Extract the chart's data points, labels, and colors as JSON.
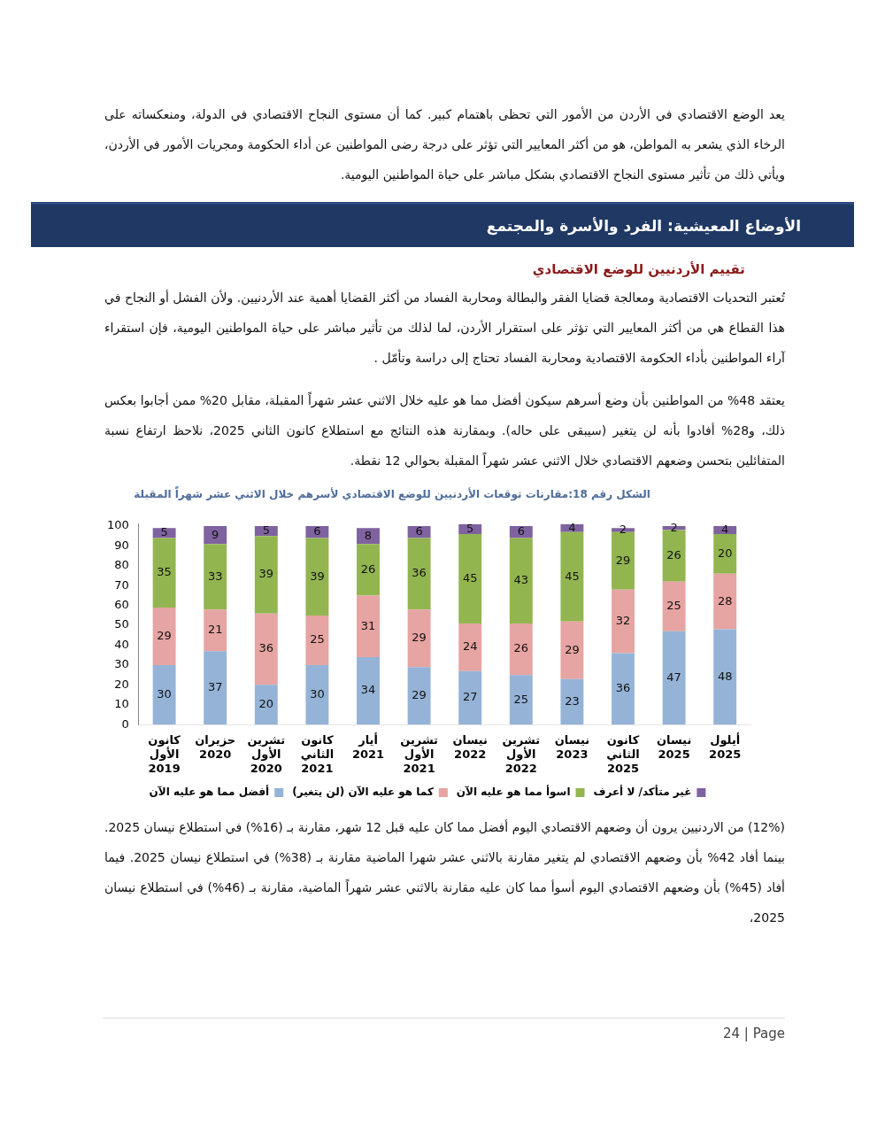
{
  "chart_data": {
    "type": "bar",
    "title": "الشكل رقم  18:مقارنات توقعات الأردنيين للوضع الاقتصادي لأسرهم خلال الاثني عشر شهراً المقبلة",
    "categories": [
      "كانون الأول 2019",
      "حزيران 2020",
      "تشرين الأول 2020",
      "كانون الثاني 2021",
      "أيار 2021",
      "تشرين الأول 2021",
      "نيسان 2022",
      "تشرين الأول 2022",
      "نيسان 2023",
      "كانون الثاني 2025",
      "نيسان 2025",
      "أيلول 2025"
    ],
    "series": [
      {
        "name": "أفضل مما هو عليه الآن",
        "color": "#95b3d7",
        "values": [
          30,
          37,
          20,
          30,
          34,
          29,
          27,
          25,
          23,
          36,
          47,
          48
        ]
      },
      {
        "name": "كما هو عليه الآن (لن يتغير)",
        "color": "#e6a4a2",
        "values": [
          29,
          21,
          36,
          25,
          31,
          29,
          24,
          26,
          29,
          32,
          25,
          28
        ]
      },
      {
        "name": "اسوأ مما هو عليه الآن",
        "color": "#92b550",
        "values": [
          35,
          33,
          39,
          39,
          26,
          36,
          45,
          43,
          45,
          29,
          26,
          20
        ]
      },
      {
        "name": "غير متأكد/ لا أعرف",
        "color": "#7f62a0",
        "values": [
          5,
          9,
          5,
          6,
          8,
          6,
          5,
          6,
          4,
          2,
          2,
          4
        ]
      }
    ],
    "stacked": true,
    "ylim": [
      0,
      101
    ],
    "yticks": [
      0,
      10,
      20,
      30,
      40,
      50,
      60,
      70,
      80,
      90,
      100
    ],
    "grid": false,
    "legend": "bottom",
    "data_labels": true,
    "annotations": [
      "يعد الوضع الاقتصادي في الأردن من الأمور التي تحظى باهتمام كبير. كما أن مستوى النجاح الاقتصادي في الدولة، ومنعكساته على الرخاء الذي يشعر به المواطن، هو من أكثر المعايير التي تؤثر على درجة رضى المواطنين عن أداء الحكومة ومجريات الأمور في الأردن، ويأتي ذلك من تأثير مستوى النجاح الاقتصادي بشكل مباشر على حياة المواطنين اليومية.",
      "الأوضاع المعيشية: الفرد والأسرة والمجتمع",
      "تقييم الأردنيين للوضع الاقتصادي",
      "تُعتبر التحديات الاقتصادية ومعالجة قضايا الفقر والبطالة ومحاربة الفساد من أكثر القضايا أهمية عند الأردنيين. ولأن الفشل أو النجاح في هذا القطاع هي من أكثر المعايير التي تؤثر على استقرار الأردن، لما لذلك من تأثير مباشر على حياة المواطنين اليومية، فإن استقراء آراء المواطنين بأداء الحكومة الاقتصادية ومحاربة الفساد تحتاج إلى دراسة وتأمّل .",
      "يعتقد 48% من المواطنين بأن وضع أسرهم سيكون أفضل مما هو عليه خلال الاثني عشر شهراً المقبلة، مقابل 20% ممن أجابوا بعكس ذلك، و28% أفادوا بأنه لن يتغير (سيبقى على حاله). وبمقارنة هذه النتائج مع استطلاع كانون الثاني 2025، نلاحظ ارتفاع نسبة المتفائلين بتحسن وضعهم الاقتصادي خلال الاثني عشر شهراً المقبلة بحوالي 12 نقطة.",
      "(12%) من الاردنيين يرون أن وضعهم الاقتصادي اليوم أفضل مما كان عليه قبل 12 شهر، مقارنة بـ (16%) في استطلاع نيسان 2025. بينما أفاد 42% بأن وضعهم الاقتصادي لم يتغير مقارنة بالاثني عشر شهرا الماضية مقارنة بـ (38%) في استطلاع نيسان 2025. فيما أفاد (45%) بأن وضعهم الاقتصادي اليوم أسوأ مما كان عليه مقارنة بالاثني عشر شهراً الماضية، مقارنة بـ (46%) في استطلاع نيسان 2025،",
      "24 | Page"
    ]
  }
}
